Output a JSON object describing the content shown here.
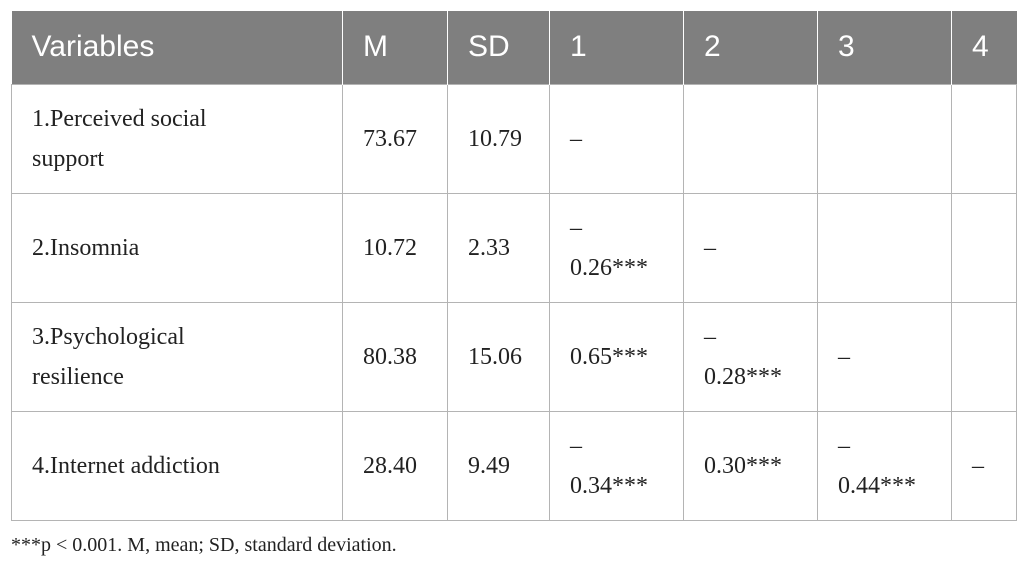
{
  "table": {
    "header": [
      "Variables",
      "M",
      "SD",
      "1",
      "2",
      "3",
      "4"
    ],
    "rows": [
      [
        "1.Perceived social support",
        "73.67",
        "10.79",
        "–",
        "",
        "",
        ""
      ],
      [
        "2.Insomnia",
        "10.72",
        "2.33",
        "–\n0.26***",
        "–",
        "",
        ""
      ],
      [
        "3.Psychological resilience",
        "80.38",
        "15.06",
        "0.65***",
        "–\n0.28***",
        "–",
        ""
      ],
      [
        "4.Internet addiction",
        "28.40",
        "9.49",
        "–\n0.34***",
        "0.30***",
        "–\n0.44***",
        "–"
      ]
    ]
  },
  "footnote": "***p < 0.001. M, mean; SD, standard deviation."
}
